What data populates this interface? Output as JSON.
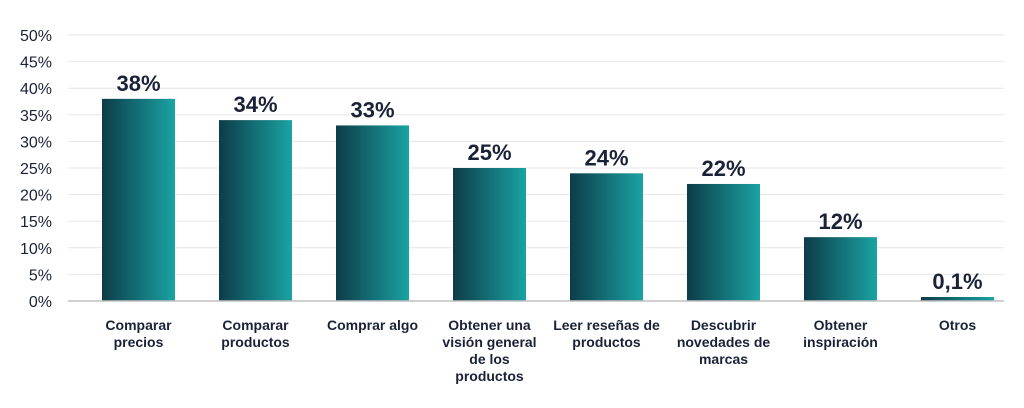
{
  "chart_data": {
    "type": "bar",
    "categories": [
      [
        "Comparar",
        "precios"
      ],
      [
        "Comparar",
        "productos"
      ],
      [
        "Comprar algo"
      ],
      [
        "Obtener una",
        "visión general",
        "de los",
        "productos"
      ],
      [
        "Leer reseñas de",
        "productos"
      ],
      [
        "Descubrir",
        "novedades de",
        "marcas"
      ],
      [
        "Obtener",
        "inspiración"
      ],
      [
        "Otros"
      ]
    ],
    "values": [
      38,
      34,
      33,
      25,
      24,
      22,
      12,
      0.1
    ],
    "value_labels": [
      "38%",
      "34%",
      "33%",
      "25%",
      "24%",
      "22%",
      "12%",
      "0,1%"
    ],
    "ylim": [
      0,
      50
    ],
    "yticks": [
      0,
      5,
      10,
      15,
      20,
      25,
      30,
      35,
      40,
      45,
      50
    ],
    "ytick_labels": [
      "0%",
      "5%",
      "10%",
      "15%",
      "20%",
      "25%",
      "30%",
      "35%",
      "40%",
      "45%",
      "50%"
    ],
    "title": "",
    "xlabel": "",
    "ylabel": "",
    "grid": true,
    "colors": {
      "bar_dark": "#0d3c48",
      "bar_light": "#1aa3a3",
      "text": "#1a2238"
    }
  }
}
